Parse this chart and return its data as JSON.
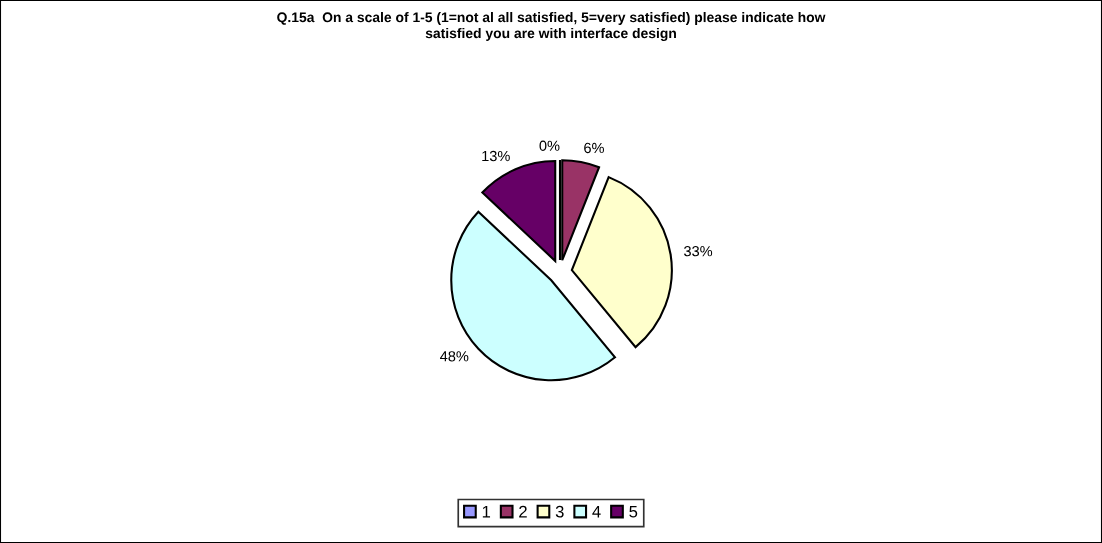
{
  "chart_data": {
    "type": "pie",
    "title": "Q.15a  On a scale of 1-5 (1=not al all satisfied, 5=very satisfied) please indicate how\nsatisfied you are with interface design",
    "categories": [
      "1",
      "2",
      "3",
      "4",
      "5"
    ],
    "values": [
      0,
      6,
      33,
      48,
      13
    ],
    "colors": [
      "#9999ff",
      "#993366",
      "#ffffcc",
      "#ccffff",
      "#660066"
    ],
    "value_labels": [
      "0%",
      "6%",
      "33%",
      "48%",
      "13%"
    ],
    "legend": "bottom"
  }
}
